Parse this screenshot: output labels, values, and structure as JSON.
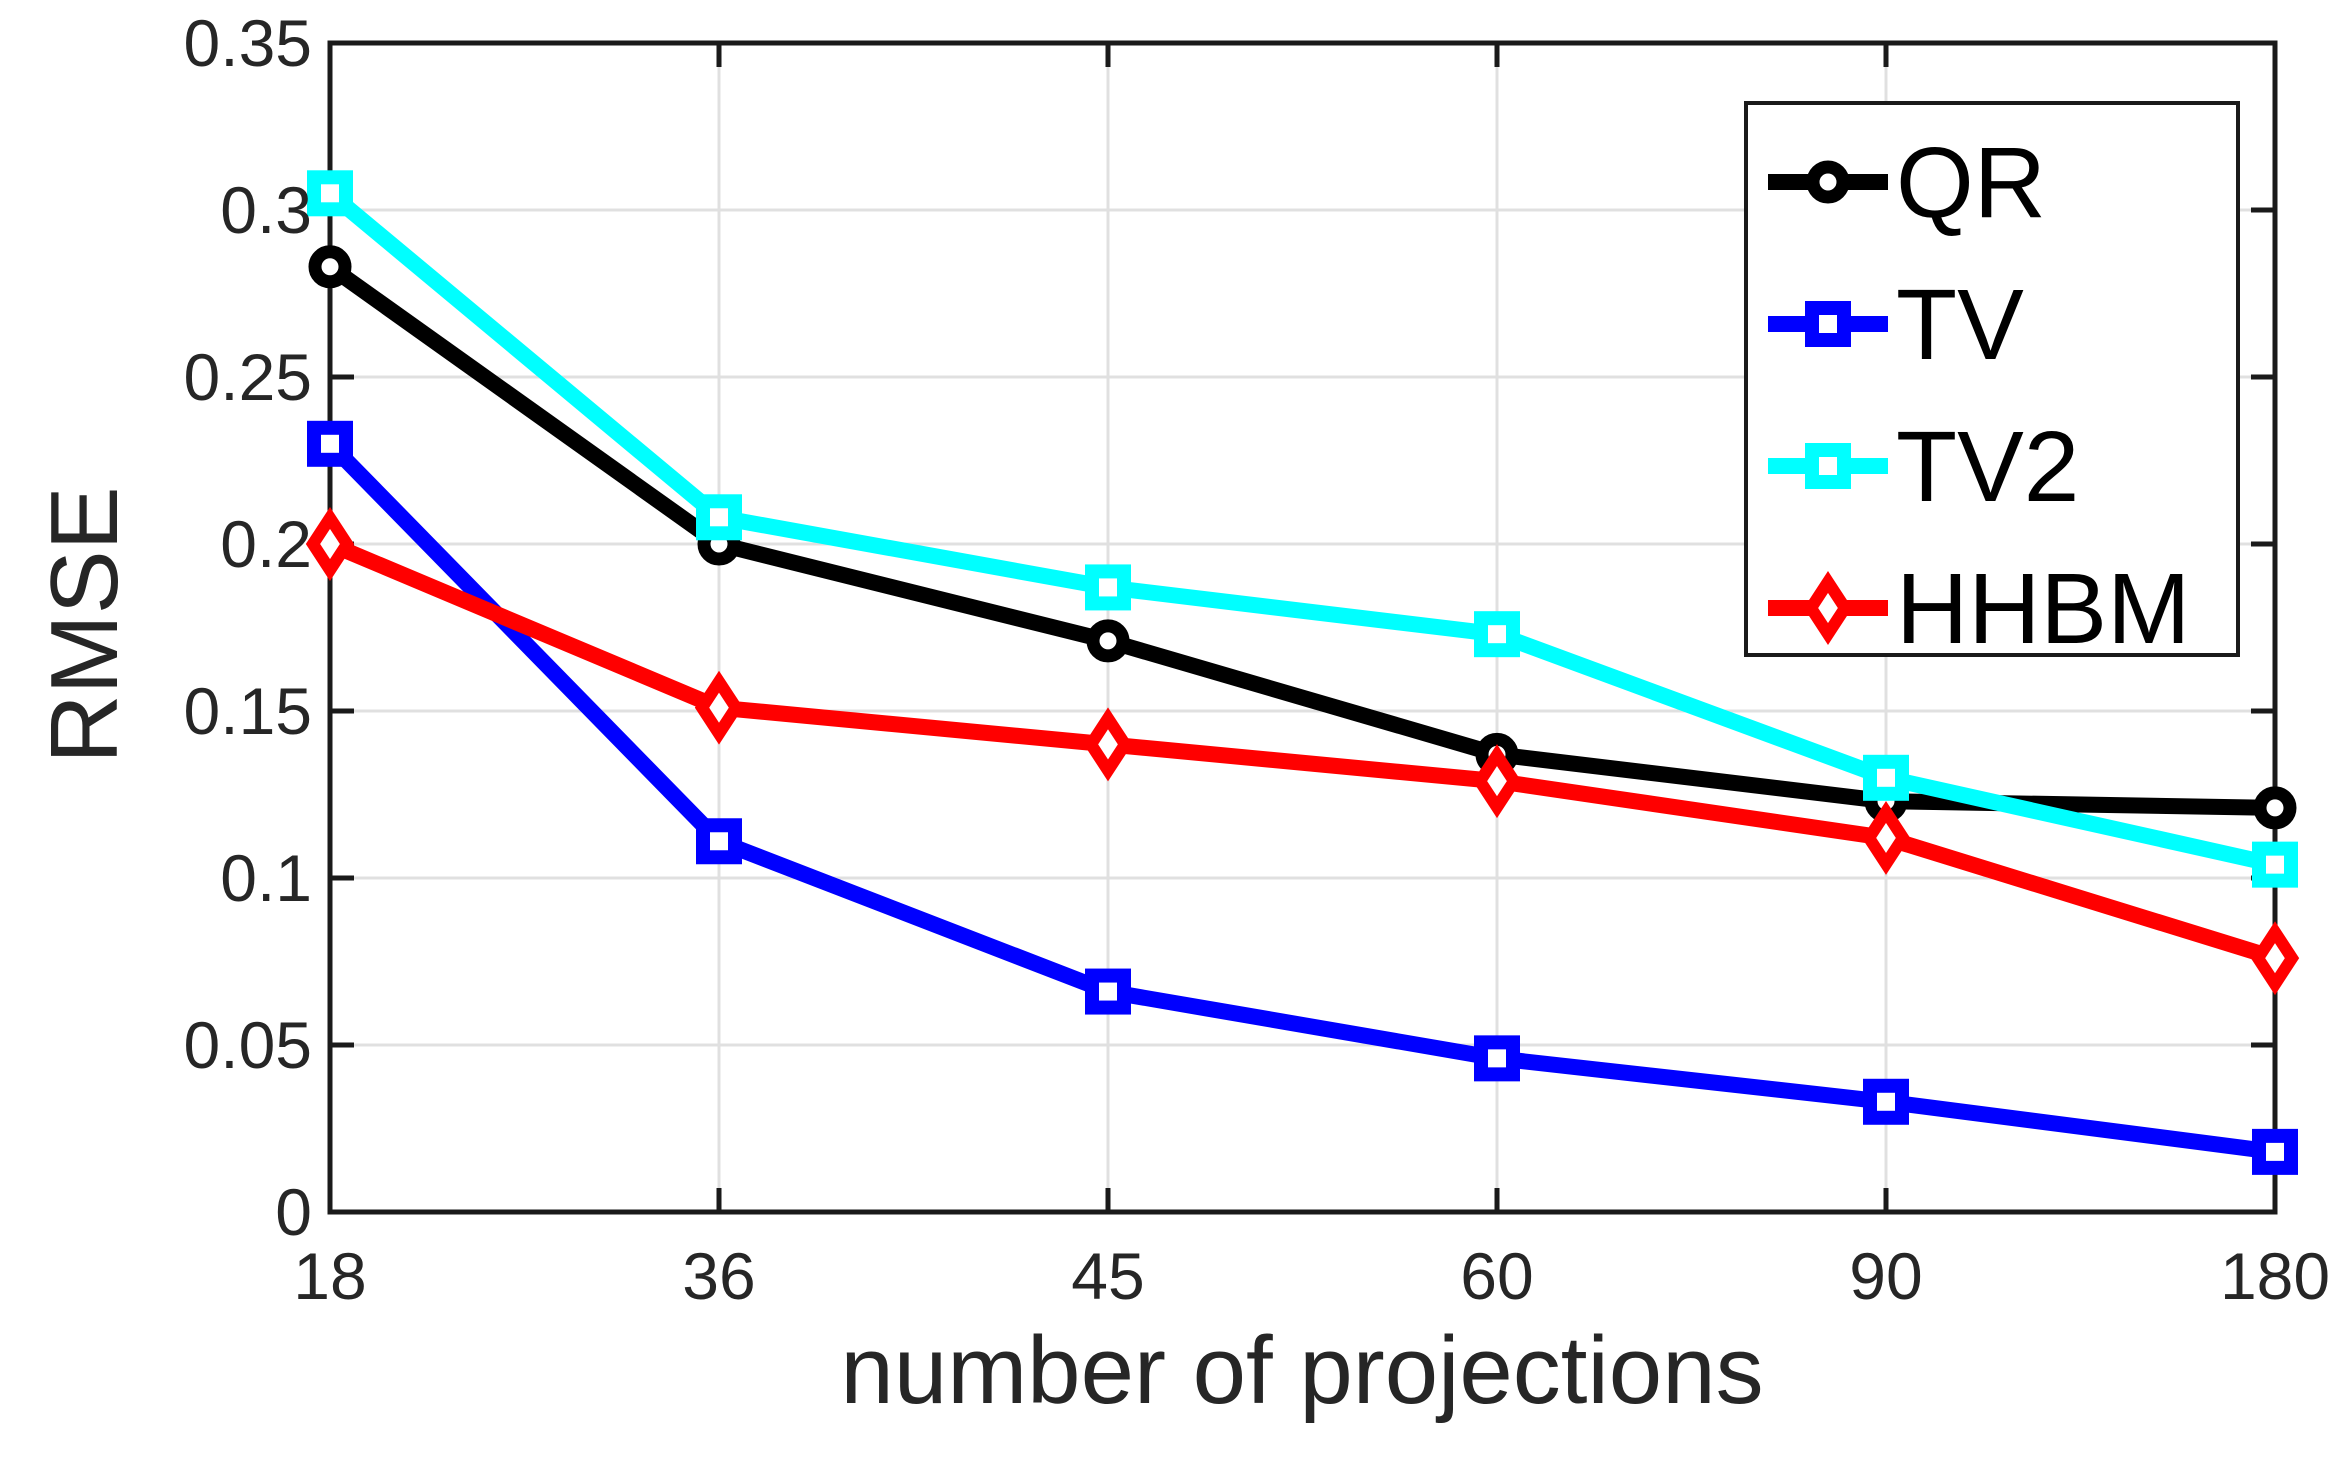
{
  "figure": {
    "background": "#ffffff",
    "axis_color": "#1a1a1a",
    "grid_color": "#e0e0e0",
    "tick_label_color": "#262626",
    "marker_fill": "#ffffff"
  },
  "chart_data": {
    "type": "line",
    "title": "",
    "xlabel": "number of projections",
    "ylabel": "RMSE",
    "categories": [
      "18",
      "36",
      "45",
      "60",
      "90",
      "180"
    ],
    "x_values": [
      18,
      36,
      45,
      60,
      90,
      180
    ],
    "ylim": [
      0,
      0.35
    ],
    "y_ticks": [
      0,
      0.05,
      0.1,
      0.15,
      0.2,
      0.25,
      0.3,
      0.35
    ],
    "y_tick_labels": [
      "0",
      "0.05",
      "0.1",
      "0.15",
      "0.2",
      "0.25",
      "0.3",
      "0.35"
    ],
    "grid": true,
    "legend_position": "upper-right",
    "series": [
      {
        "name": "QR",
        "color": "#000000",
        "marker": "circle",
        "values": [
          0.283,
          0.2,
          0.171,
          0.137,
          0.123,
          0.121
        ]
      },
      {
        "name": "TV",
        "color": "#0000ff",
        "marker": "square",
        "values": [
          0.23,
          0.111,
          0.066,
          0.046,
          0.033,
          0.018
        ]
      },
      {
        "name": "TV2",
        "color": "#00ffff",
        "marker": "square",
        "values": [
          0.305,
          0.208,
          0.187,
          0.173,
          0.13,
          0.104
        ]
      },
      {
        "name": "HHBM",
        "color": "#ff0000",
        "marker": "diamond",
        "values": [
          0.2,
          0.151,
          0.14,
          0.129,
          0.112,
          0.076
        ]
      }
    ]
  }
}
